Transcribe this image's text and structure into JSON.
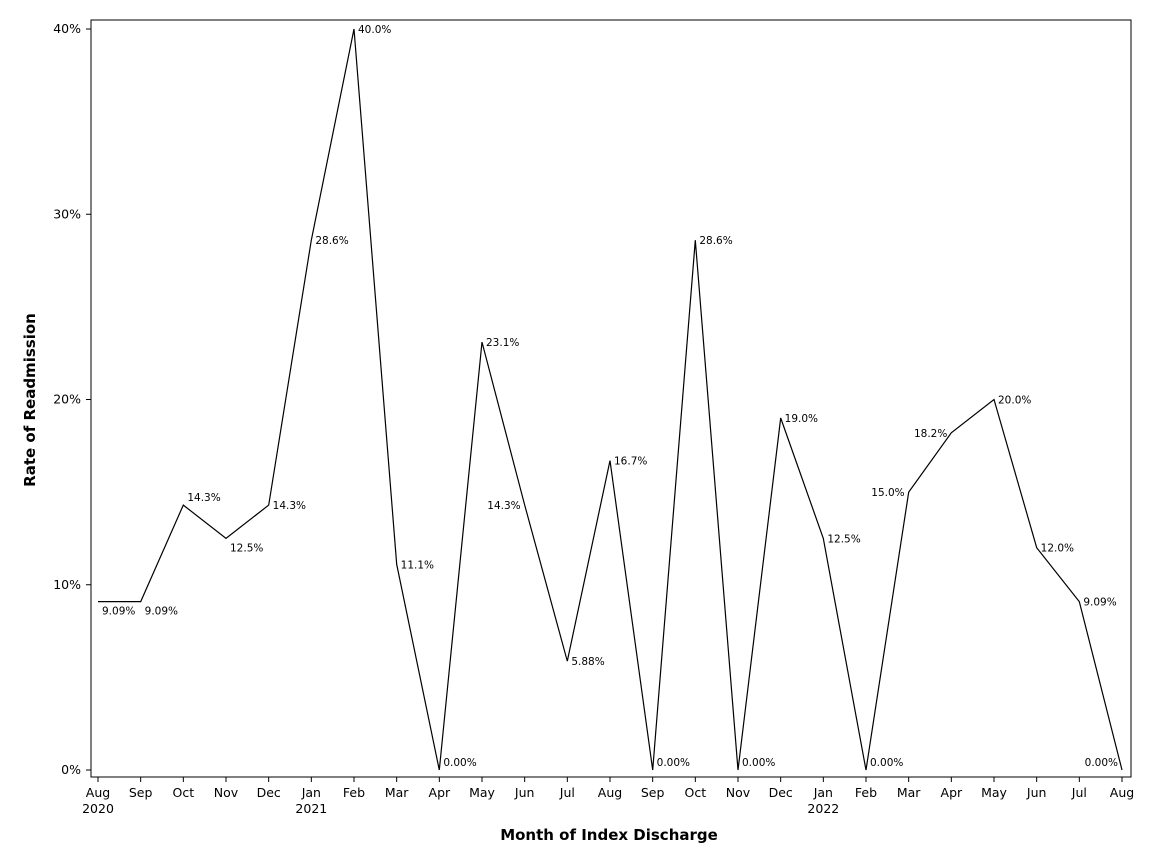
{
  "chart_data": {
    "type": "line",
    "title": "",
    "xlabel": "Month of Index Discharge",
    "ylabel": "Rate of Readmission",
    "categories": [
      "Aug",
      "Sep",
      "Oct",
      "Nov",
      "Dec",
      "Jan",
      "Feb",
      "Mar",
      "Apr",
      "May",
      "Jun",
      "Jul",
      "Aug",
      "Sep",
      "Oct",
      "Nov",
      "Dec",
      "Jan",
      "Feb",
      "Mar",
      "Apr",
      "May",
      "Jun",
      "Jul",
      "Aug"
    ],
    "year_labels": [
      {
        "index": 0,
        "label": "2020"
      },
      {
        "index": 5,
        "label": "2021"
      },
      {
        "index": 17,
        "label": "2022"
      }
    ],
    "values": [
      9.09,
      9.09,
      14.3,
      12.5,
      14.3,
      28.6,
      40.0,
      11.1,
      0.0,
      23.1,
      14.3,
      5.88,
      16.7,
      0.0,
      28.6,
      0.0,
      19.0,
      12.5,
      0.0,
      15.0,
      18.2,
      20.0,
      12.0,
      9.09,
      0.0
    ],
    "value_labels": [
      "9.09%",
      "9.09%",
      "14.3%",
      "12.5%",
      "14.3%",
      "28.6%",
      "40.0%",
      "11.1%",
      "0.00%",
      "23.1%",
      "14.3%",
      "5.88%",
      "16.7%",
      "0.00%",
      "28.6%",
      "0.00%",
      "19.0%",
      "12.5%",
      "0.00%",
      "15.0%",
      "18.2%",
      "20.0%",
      "12.0%",
      "9.09%",
      "0.00%"
    ],
    "label_side": [
      "below",
      "below",
      "above",
      "below",
      "right",
      "right",
      "right",
      "right",
      "right",
      "right",
      "left",
      "right",
      "right",
      "right",
      "right",
      "right",
      "right",
      "right",
      "right",
      "left",
      "left",
      "right",
      "right",
      "right",
      "left"
    ],
    "yticks": [
      0,
      10,
      20,
      30,
      40
    ],
    "ytick_labels": [
      "0%",
      "10%",
      "20%",
      "30%",
      "40%"
    ],
    "ylim": [
      0,
      40
    ],
    "grid": false,
    "legend": "none",
    "line_color": "#000000"
  }
}
